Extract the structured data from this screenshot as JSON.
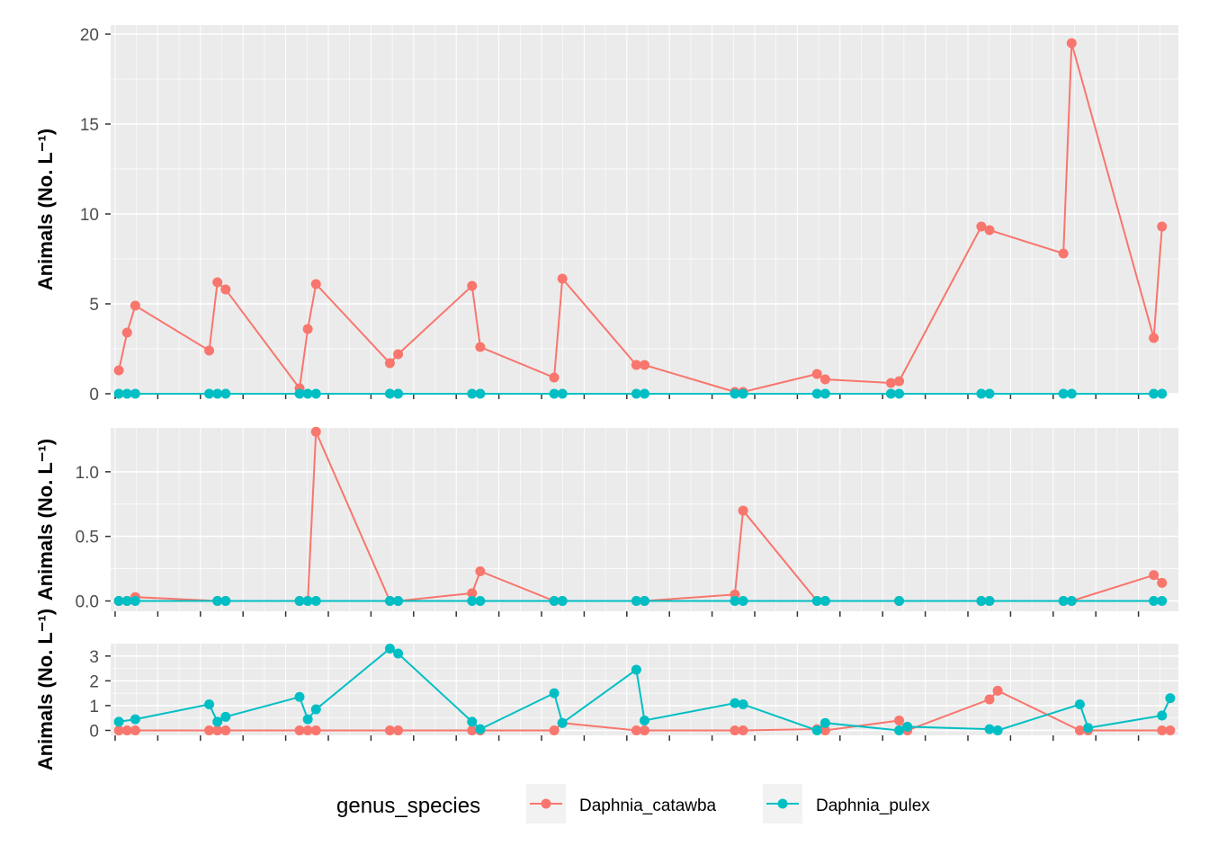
{
  "chart_data": {
    "type": "line",
    "legend": {
      "title": "genus_species",
      "position": "bottom",
      "entries": [
        {
          "name": "Daphnia_catawba",
          "color": "#F8766D"
        },
        {
          "name": "Daphnia_pulex",
          "color": "#00BFC4"
        }
      ]
    },
    "grid": true,
    "panels": [
      {
        "ylabel": "Animals (No. L⁻¹)",
        "ylim": [
          0,
          20.5
        ],
        "y_ticks": [
          "0",
          "5",
          "10",
          "15",
          "20"
        ],
        "series": [
          {
            "name": "Daphnia_catawba",
            "x": [
              0,
              1,
              2,
              11,
              12,
              13,
              22,
              23,
              24,
              33,
              34,
              43,
              44,
              53,
              54,
              63,
              64,
              75,
              76,
              85,
              86,
              94,
              95,
              105,
              106,
              115,
              116,
              126,
              127
            ],
            "y": [
              1.3,
              3.4,
              4.9,
              2.4,
              6.2,
              5.8,
              0.3,
              3.6,
              6.1,
              1.7,
              2.2,
              6.0,
              2.6,
              0.9,
              6.4,
              1.6,
              1.6,
              0.1,
              0.1,
              1.1,
              0.8,
              0.6,
              0.7,
              9.3,
              9.1,
              7.8,
              19.5,
              3.1,
              9.3
            ]
          },
          {
            "name": "Daphnia_pulex",
            "x": [
              0,
              1,
              2,
              11,
              12,
              13,
              22,
              23,
              24,
              33,
              34,
              43,
              44,
              53,
              54,
              63,
              64,
              75,
              76,
              85,
              86,
              94,
              95,
              105,
              106,
              115,
              116,
              126,
              127
            ],
            "y": [
              0,
              0,
              0,
              0,
              0,
              0,
              0,
              0,
              0,
              0,
              0,
              0,
              0,
              0,
              0,
              0,
              0,
              0,
              0,
              0,
              0,
              0,
              0,
              0,
              0,
              0,
              0,
              0,
              0
            ]
          }
        ]
      },
      {
        "ylabel": "Animals (No. L⁻¹)",
        "ylim": [
          -0.08,
          1.34
        ],
        "y_ticks": [
          "0.0",
          "0.5",
          "1.0"
        ],
        "series": [
          {
            "name": "Daphnia_catawba",
            "x": [
              0,
              1,
              2,
              12,
              13,
              22,
              23,
              24,
              33,
              34,
              43,
              44,
              53,
              54,
              63,
              64,
              75,
              76,
              85,
              86,
              95,
              105,
              106,
              115,
              116,
              126,
              127
            ],
            "y": [
              0.0,
              0.0,
              0.03,
              0.0,
              0.0,
              0.0,
              0.0,
              1.31,
              0.0,
              0.0,
              0.06,
              0.23,
              0.0,
              0.0,
              0.0,
              0.0,
              0.05,
              0.7,
              0.0,
              0.0,
              0.0,
              0.0,
              0.0,
              0.0,
              0.0,
              0.2,
              0.14
            ]
          },
          {
            "name": "Daphnia_pulex",
            "x": [
              0,
              1,
              2,
              12,
              13,
              22,
              23,
              24,
              33,
              34,
              43,
              44,
              53,
              54,
              63,
              64,
              75,
              76,
              85,
              86,
              95,
              105,
              106,
              115,
              116,
              126,
              127
            ],
            "y": [
              0,
              0,
              0,
              0,
              0,
              0,
              0,
              0,
              0,
              0,
              0,
              0,
              0,
              0,
              0,
              0,
              0,
              0,
              0,
              0,
              0,
              0,
              0,
              0,
              0,
              0,
              0
            ]
          }
        ]
      },
      {
        "ylabel": "Animals (No. L⁻¹)",
        "ylim": [
          -0.2,
          3.5
        ],
        "y_ticks": [
          "0",
          "1",
          "2",
          "3"
        ],
        "series": [
          {
            "name": "Daphnia_catawba",
            "x": [
              0,
              1,
              2,
              11,
              12,
              13,
              22,
              23,
              24,
              33,
              34,
              43,
              44,
              53,
              54,
              63,
              64,
              75,
              76,
              85,
              86,
              95,
              96,
              106,
              107,
              117,
              118,
              127,
              128
            ],
            "y": [
              0,
              0,
              0,
              0,
              0,
              0,
              0,
              0,
              0,
              0,
              0,
              0,
              0,
              0,
              0.3,
              0,
              0,
              0,
              0,
              0.05,
              0,
              0.4,
              0,
              1.25,
              1.6,
              0,
              0,
              0,
              0
            ]
          },
          {
            "name": "Daphnia_pulex",
            "x": [
              0,
              2,
              11,
              12,
              13,
              22,
              23,
              24,
              33,
              34,
              43,
              44,
              53,
              54,
              63,
              64,
              75,
              76,
              85,
              86,
              95,
              96,
              106,
              107,
              117,
              118,
              127,
              128
            ],
            "y": [
              0.35,
              0.45,
              1.05,
              0.35,
              0.55,
              1.35,
              0.45,
              0.85,
              3.3,
              3.1,
              0.35,
              0.05,
              1.5,
              0.3,
              2.45,
              0.4,
              1.1,
              1.05,
              0,
              0.3,
              0,
              0.15,
              0.05,
              0,
              1.05,
              0.1,
              0.6,
              1.3
            ]
          }
        ]
      }
    ]
  }
}
